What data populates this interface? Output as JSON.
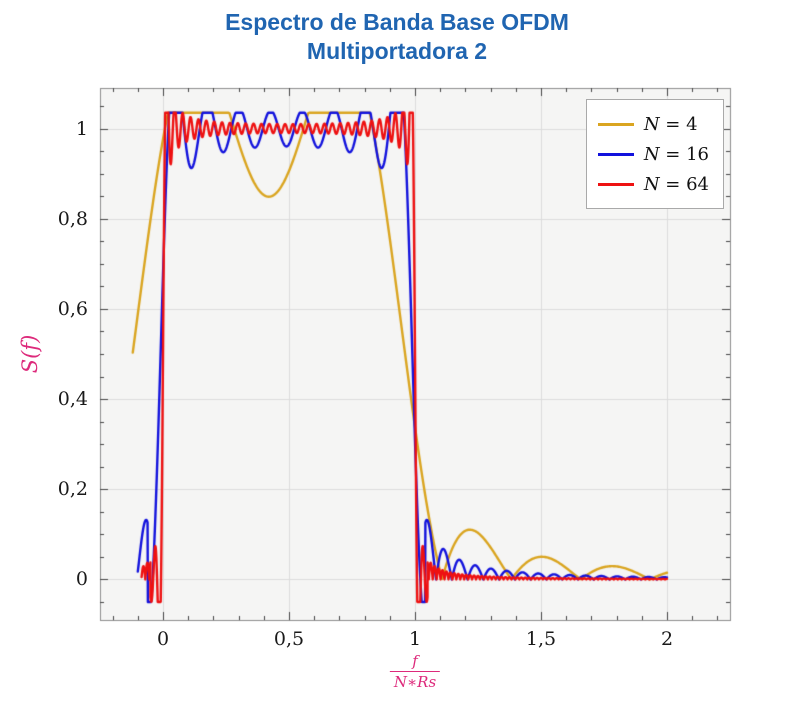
{
  "title": {
    "line1": "Espectro de Banda Base OFDM",
    "line2": "Multiportadora 2",
    "color": "#2065b1"
  },
  "chart_data": {
    "type": "line",
    "title": "Espectro de Banda Base OFDM - Multiportadora 2",
    "xlabel_numerator": "f",
    "xlabel_denominator": "N∗Rs",
    "ylabel": "S(f)",
    "axis_label_color": "#dd2a7b",
    "xlim": [
      -0.25,
      2.25
    ],
    "ylim": [
      -0.09,
      1.09
    ],
    "x_ticks": [
      {
        "v": 0,
        "label": "0"
      },
      {
        "v": 0.5,
        "label": "0,5"
      },
      {
        "v": 1,
        "label": "1"
      },
      {
        "v": 1.5,
        "label": "1,5"
      },
      {
        "v": 2,
        "label": "2"
      }
    ],
    "y_ticks": [
      {
        "v": 0,
        "label": "0"
      },
      {
        "v": 0.2,
        "label": "0,2"
      },
      {
        "v": 0.4,
        "label": "0,4"
      },
      {
        "v": 0.6,
        "label": "0,6"
      },
      {
        "v": 0.8,
        "label": "0,8"
      },
      {
        "v": 1,
        "label": "1"
      }
    ],
    "x_minor_step": 0.1,
    "y_minor_step": 0.05,
    "grid": true,
    "plot_bg": "#f5f5f4",
    "grid_color": "#dcdcdc",
    "frame_color": "#8c8c8c",
    "tick_color": "#444444",
    "legend": {
      "position": "top-right",
      "entries": [
        {
          "var": "N",
          "rest": " = 4",
          "color": "#DAA520"
        },
        {
          "var": "N",
          "rest": " = 16",
          "color": "#1212dd"
        },
        {
          "var": "N",
          "rest": " = 64",
          "color": "#ee1111"
        }
      ]
    },
    "model": "S_N(x) = Σ_{k=0}^{N-1} sinc(N·x′ − k − 0.5), x′ = (x − shift)/scale, sinc(t)=sin(πt)/(πt); signed sum inside the band, magnitude outside [abs_outside_band]; flat top at 1.0 over normalized band [0,1], N ripple peaks of height 1.0, ripple dips ≈ 0.85 (N=4), 0.96 (N=16), 0.99 (N=64); steep band edges at x≈0 and x≈1 with Gibbs overshoot to ≈1.02 and undershoot to ≈−0.04 for N=64; decaying sidelobes for 1 < x ≤ 2 (largest ≈0.08 for N=4)",
    "abs_outside_band": [
      -0.05,
      1.05
    ],
    "series": [
      {
        "name": "N = 4",
        "N": 4,
        "color": "#DAA520",
        "width": 2.4,
        "x_start": -0.12,
        "x_end": 2.0,
        "shift": -0.13,
        "scale": 1.1
      },
      {
        "name": "N = 16",
        "N": 16,
        "color": "#1212dd",
        "width": 2.4,
        "x_start": -0.1,
        "x_end": 2.0,
        "shift": -0.01,
        "scale": 1.0
      },
      {
        "name": "N = 64",
        "N": 64,
        "color": "#ee1111",
        "width": 2.4,
        "x_start": -0.085,
        "x_end": 2.0,
        "shift": 0.0,
        "scale": 1.0
      }
    ]
  }
}
